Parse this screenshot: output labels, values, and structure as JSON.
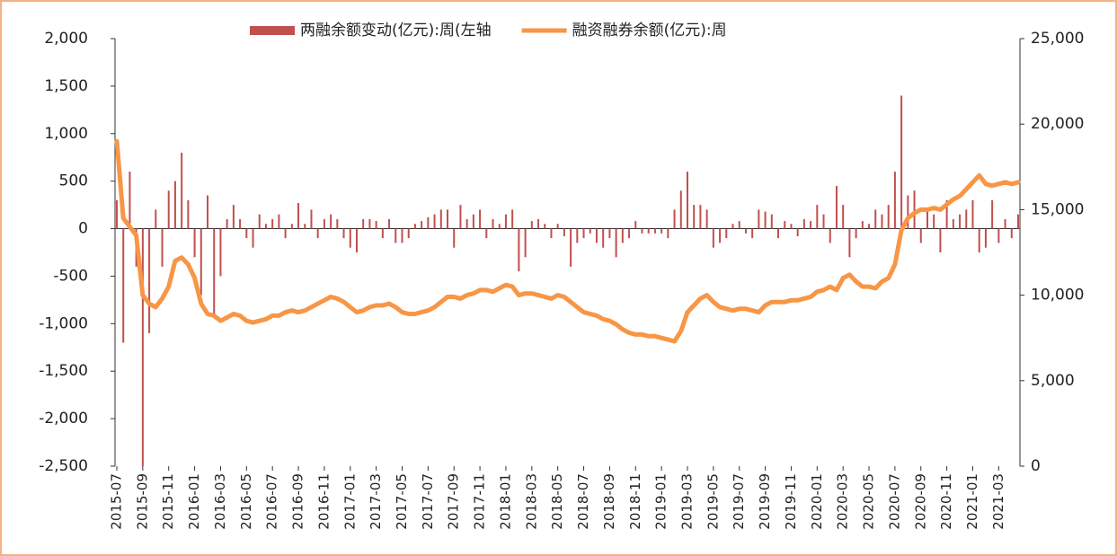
{
  "chart_data": {
    "type": "bar_line",
    "categories": [
      "2015-07",
      null,
      null,
      null,
      "2015-09",
      null,
      null,
      null,
      "2015-11",
      null,
      null,
      null,
      "2016-01",
      null,
      null,
      null,
      "2016-03",
      null,
      null,
      null,
      "2016-05",
      null,
      null,
      null,
      "2016-07",
      null,
      null,
      null,
      "2016-09",
      null,
      null,
      null,
      "2016-11",
      null,
      null,
      null,
      "2017-01",
      null,
      null,
      null,
      "2017-03",
      null,
      null,
      null,
      "2017-05",
      null,
      null,
      null,
      "2017-07",
      null,
      null,
      null,
      "2017-09",
      null,
      null,
      null,
      "2017-11",
      null,
      null,
      null,
      "2018-01",
      null,
      null,
      null,
      "2018-03",
      null,
      null,
      null,
      "2018-05",
      null,
      null,
      null,
      "2018-07",
      null,
      null,
      null,
      "2018-09",
      null,
      null,
      null,
      "2018-11",
      null,
      null,
      null,
      "2019-01",
      null,
      null,
      null,
      "2019-03",
      null,
      null,
      null,
      "2019-05",
      null,
      null,
      null,
      "2019-07",
      null,
      null,
      null,
      "2019-09",
      null,
      null,
      null,
      "2019-11",
      null,
      null,
      null,
      "2020-01",
      null,
      null,
      null,
      "2020-03",
      null,
      null,
      null,
      "2020-05",
      null,
      null,
      null,
      "2020-07",
      null,
      null,
      null,
      "2020-09",
      null,
      null,
      null,
      "2020-11",
      null,
      null,
      null,
      "2021-01",
      null,
      null,
      null,
      "2021-03",
      null,
      null,
      null
    ],
    "series": [
      {
        "name": "两融余额变动(亿元):周(左轴",
        "color": "#c0504d",
        "axis": "y",
        "values": [
          300,
          -1200,
          600,
          -400,
          -2500,
          -1100,
          200,
          -400,
          400,
          500,
          800,
          300,
          -300,
          -700,
          350,
          -900,
          -500,
          100,
          250,
          100,
          -100,
          -200,
          150,
          50,
          100,
          150,
          -100,
          50,
          270,
          50,
          200,
          -100,
          100,
          150,
          100,
          -100,
          -200,
          -250,
          100,
          100,
          80,
          -100,
          100,
          -150,
          -150,
          -100,
          50,
          80,
          120,
          150,
          200,
          200,
          -200,
          250,
          100,
          150,
          200,
          -100,
          100,
          50,
          150,
          200,
          -450,
          -300,
          80,
          100,
          50,
          -100,
          50,
          -80,
          -400,
          -150,
          -100,
          -50,
          -150,
          -200,
          -100,
          -300,
          -150,
          -100,
          80,
          -50,
          -50,
          -50,
          -50,
          -100,
          200,
          400,
          600,
          250,
          250,
          200,
          -200,
          -150,
          -100,
          50,
          80,
          -50,
          -100,
          200,
          180,
          150,
          -100,
          80,
          50,
          -80,
          100,
          80,
          250,
          150,
          -150,
          450,
          250,
          -300,
          -100,
          80,
          50,
          200,
          150,
          250,
          600,
          1400,
          350,
          400,
          -150,
          200,
          150,
          -250,
          300,
          100,
          150,
          200,
          300,
          -250,
          -200,
          300,
          -150,
          100,
          -100,
          150
        ]
      },
      {
        "name": "融资融券余额(亿元):周",
        "color": "#f79646",
        "axis": "y2",
        "values": [
          19000,
          14500,
          14000,
          13500,
          10000,
          9500,
          9300,
          9800,
          10500,
          12000,
          12200,
          11800,
          11000,
          9500,
          8900,
          8800,
          8500,
          8700,
          8900,
          8800,
          8500,
          8400,
          8500,
          8600,
          8800,
          8800,
          9000,
          9100,
          9000,
          9100,
          9300,
          9500,
          9700,
          9900,
          9800,
          9600,
          9300,
          9000,
          9100,
          9300,
          9400,
          9400,
          9500,
          9300,
          9000,
          8900,
          8900,
          9000,
          9100,
          9300,
          9600,
          9900,
          9900,
          9800,
          10000,
          10100,
          10300,
          10300,
          10200,
          10400,
          10600,
          10500,
          10000,
          10100,
          10100,
          10000,
          9900,
          9800,
          10000,
          9900,
          9600,
          9300,
          9000,
          8900,
          8800,
          8600,
          8500,
          8300,
          8000,
          7800,
          7700,
          7700,
          7600,
          7600,
          7500,
          7400,
          7300,
          7900,
          9000,
          9400,
          9800,
          10000,
          9600,
          9300,
          9200,
          9100,
          9200,
          9200,
          9100,
          9000,
          9400,
          9600,
          9600,
          9600,
          9700,
          9700,
          9800,
          9900,
          10200,
          10300,
          10500,
          10300,
          11000,
          11200,
          10800,
          10500,
          10500,
          10400,
          10800,
          11000,
          11800,
          13800,
          14500,
          14800,
          15000,
          15000,
          15100,
          15000,
          15300,
          15600,
          15800,
          16200,
          16600,
          17000,
          16500,
          16400,
          16500,
          16600,
          16500,
          16600
        ]
      }
    ],
    "ylim": [
      -2500,
      2000
    ],
    "yticks": [
      {
        "value": -2500,
        "label": "-2,500"
      },
      {
        "value": -2000,
        "label": "-2,000"
      },
      {
        "value": -1500,
        "label": "-1,500"
      },
      {
        "value": -1000,
        "label": "-1,000"
      },
      -500,
      0,
      500,
      {
        "value": 1000,
        "label": "1,000"
      },
      {
        "value": 1500,
        "label": "1,500"
      },
      {
        "value": 2000,
        "label": "2,000"
      }
    ],
    "y2lim": [
      0,
      25000
    ],
    "y2ticks": [
      0,
      {
        "value": 5000,
        "label": "5,000"
      },
      {
        "value": 10000,
        "label": "10,000"
      },
      {
        "value": 15000,
        "label": "15,000"
      },
      {
        "value": 20000,
        "label": "20,000"
      },
      {
        "value": 25000,
        "label": "25,000"
      }
    ],
    "legend": "top"
  }
}
